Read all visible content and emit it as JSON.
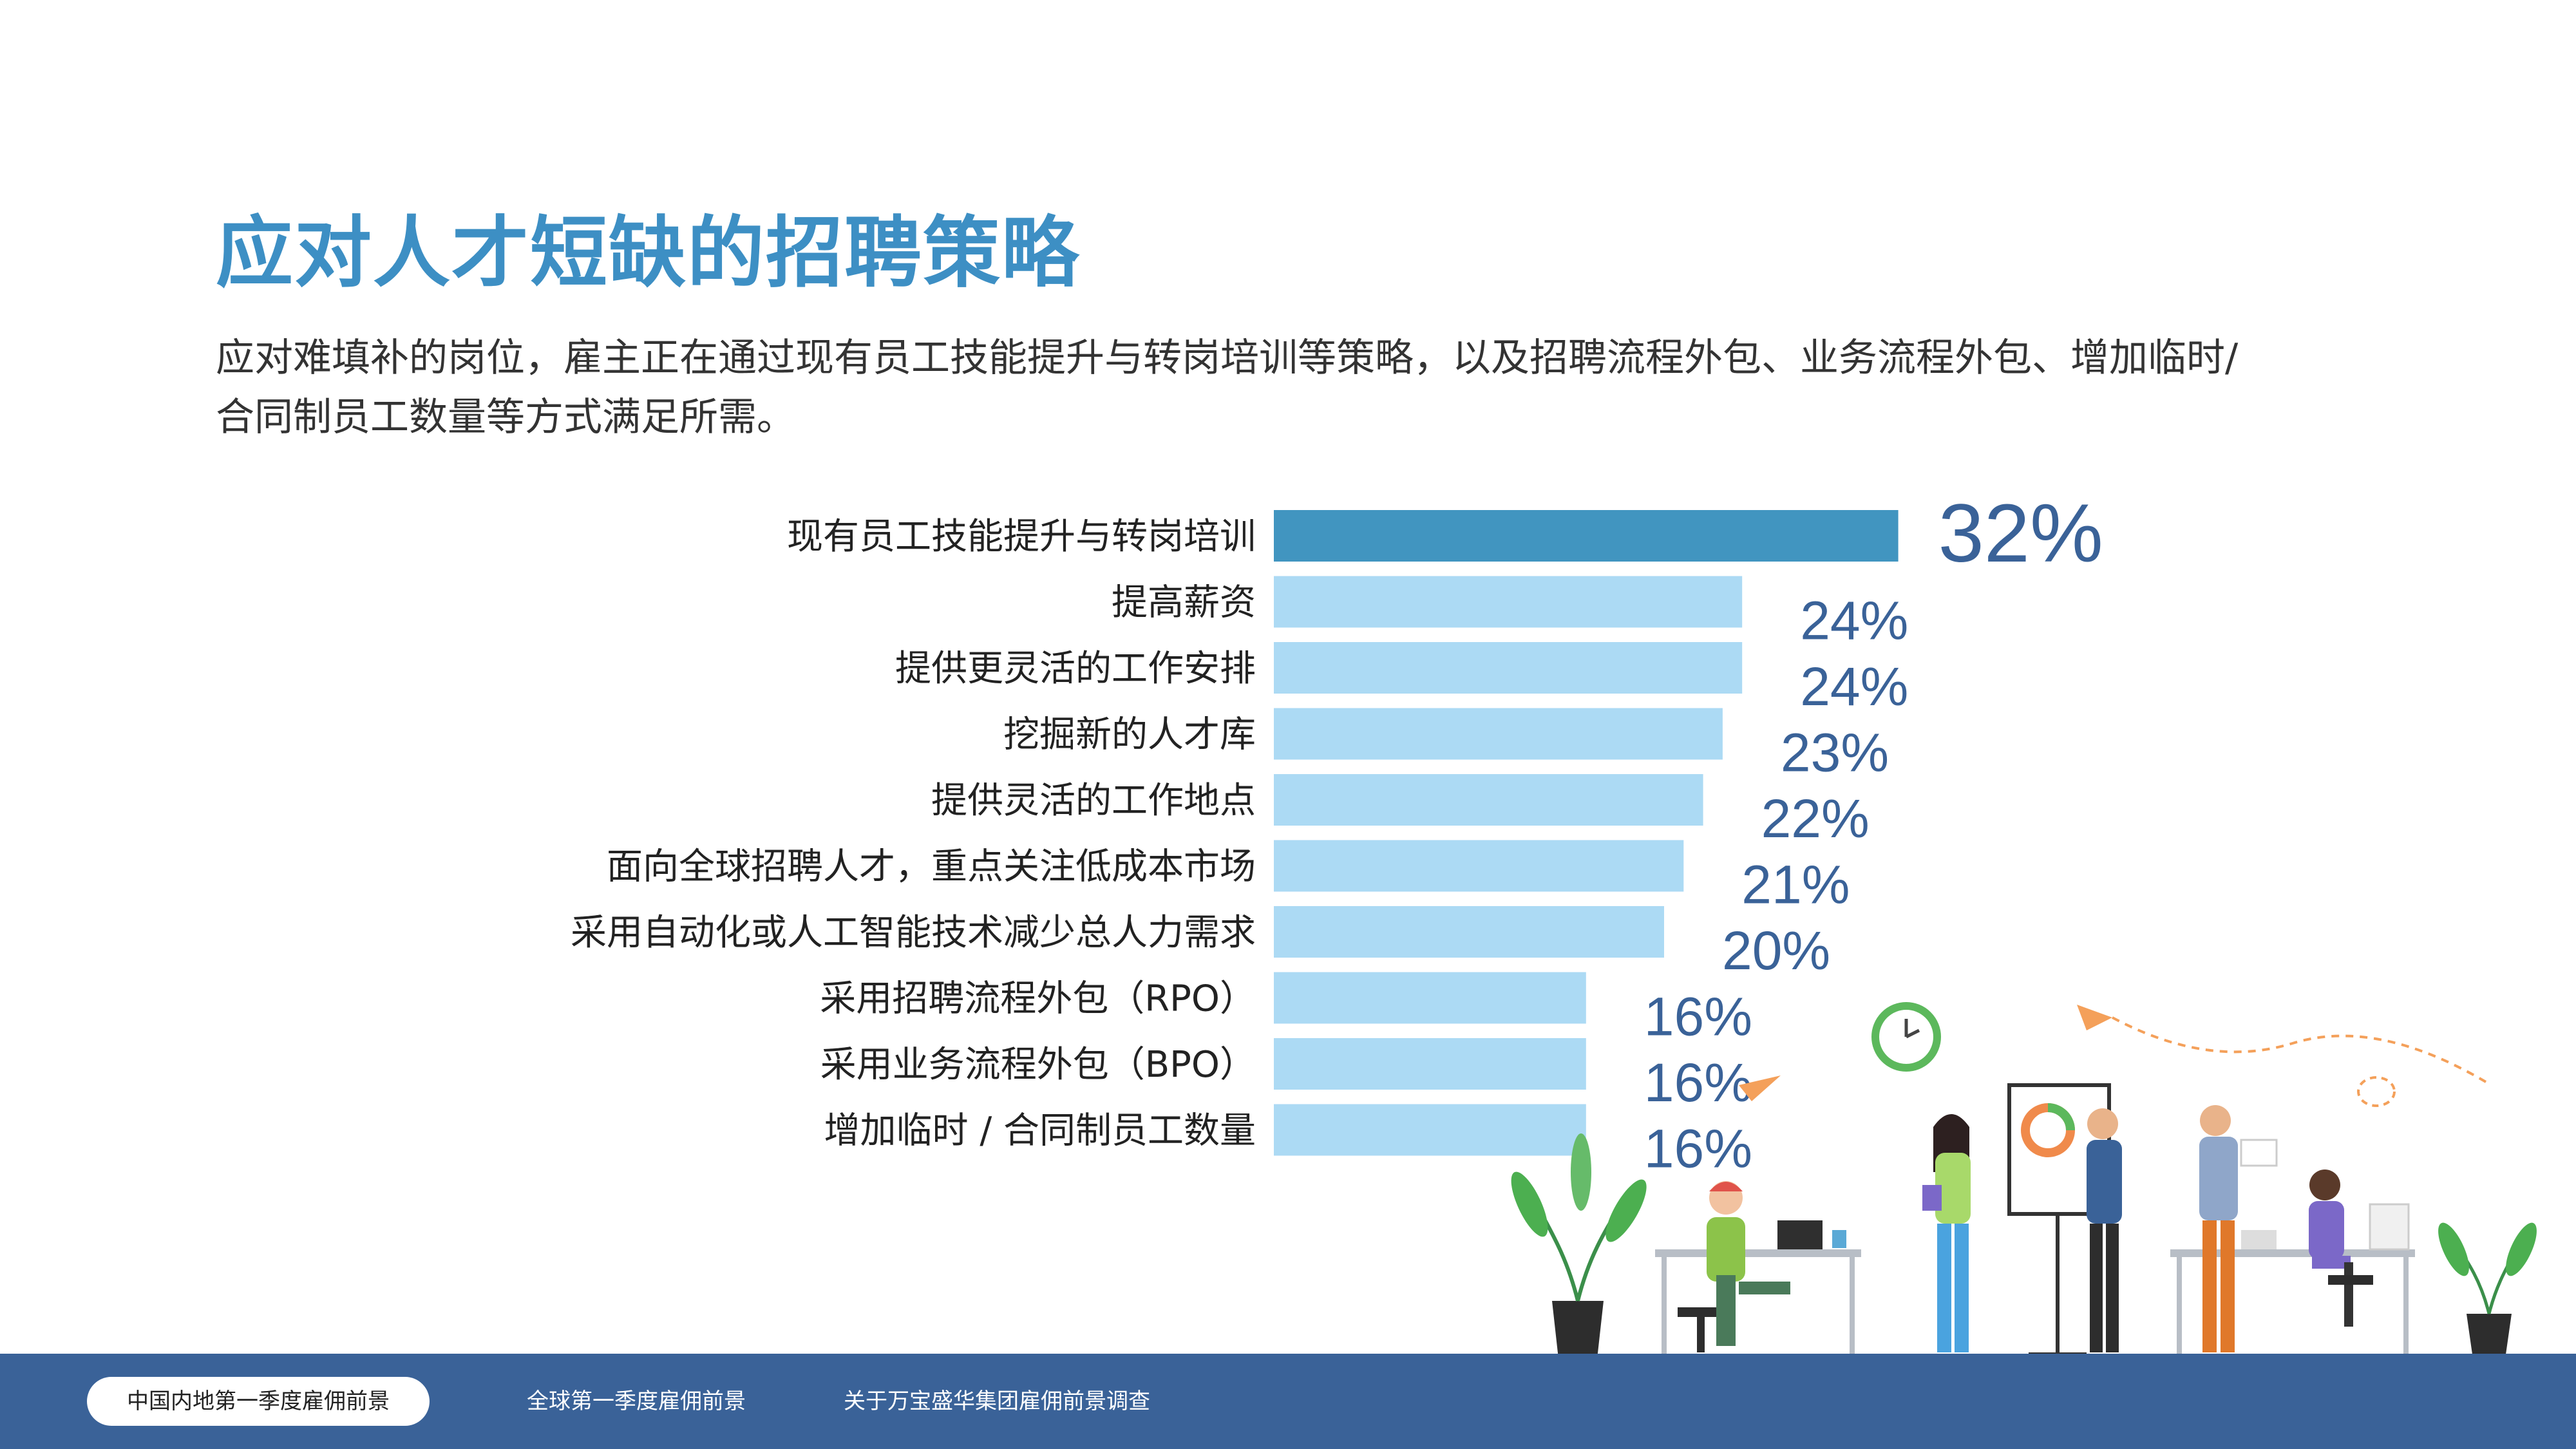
{
  "title": "应对人才短缺的招聘策略",
  "subtitle_lines": [
    "应对难填补的岗位，雇主正在通过现有员工技能提升与转岗培训等策略，以及招聘流程外包、业务流程外包、增加临时/",
    "合同制员工数量等方式满足所需。"
  ],
  "chart_data": {
    "type": "bar",
    "orientation": "horizontal",
    "categories": [
      "现有员工技能提升与转岗培训",
      "提高薪资",
      "提供更灵活的工作安排",
      "挖掘新的人才库",
      "提供灵活的工作地点",
      "面向全球招聘人才，重点关注低成本市场",
      "采用自动化或人工智能技术减少总人力需求",
      "采用招聘流程外包（RPO）",
      "采用业务流程外包（BPO）",
      "增加临时 / 合同制员工数量"
    ],
    "values": [
      32,
      24,
      24,
      23,
      22,
      21,
      20,
      16,
      16,
      16
    ],
    "value_labels": [
      "32%",
      "24%",
      "24%",
      "23%",
      "22%",
      "21%",
      "20%",
      "16%",
      "16%",
      "16%"
    ],
    "unit": "%",
    "colors": {
      "highlight": "#4195c0",
      "bar": "#acdaf4",
      "value_label": "#3a6298"
    }
  },
  "footer": {
    "tabs": [
      {
        "label": "中国内地第一季度雇佣前景",
        "active": true
      },
      {
        "label": "全球第一季度雇佣前景",
        "active": false
      },
      {
        "label": "关于万宝盛华集团雇佣前景调查",
        "active": false
      }
    ]
  }
}
